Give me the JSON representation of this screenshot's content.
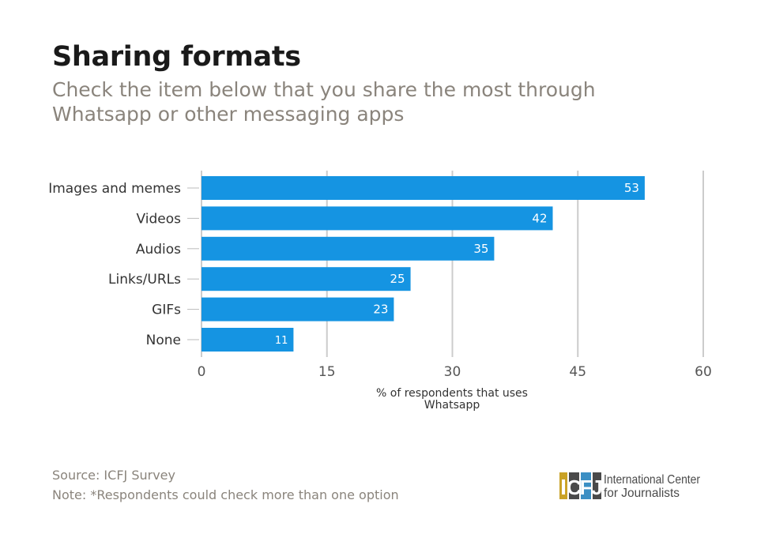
{
  "chart_data": {
    "type": "bar",
    "orientation": "horizontal",
    "title": "Sharing formats",
    "subtitle": "Check the item below that you share the most through Whatsapp or other messaging apps",
    "categories": [
      "Images and memes",
      "Videos",
      "Audios",
      "Links/URLs",
      "GIFs",
      "None"
    ],
    "values": [
      53,
      42,
      35,
      25,
      23,
      11
    ],
    "data_labels": [
      "53",
      "42",
      "35",
      "25",
      "23",
      "11"
    ],
    "xlabel": "% of respondents that uses Whatsapp",
    "xlim": [
      0,
      60
    ],
    "xticks": [
      "0",
      "15",
      "30",
      "45",
      "60"
    ],
    "xtick_values": [
      0,
      15,
      30,
      45,
      60
    ],
    "grid": true,
    "bar_color": "#1594e2",
    "grid_color": "#cccccc"
  },
  "footer": {
    "source": "Source: ICFJ Survey",
    "note": "Note: *Respondents could check more than one option"
  },
  "logo": {
    "letters": [
      "I",
      "C",
      "F",
      "J"
    ],
    "letter_colors": [
      "#c9a227",
      "#4a4a4a",
      "#3b8fc4",
      "#4a4a4a"
    ],
    "line1": "International Center",
    "line2": "for Journalists"
  }
}
